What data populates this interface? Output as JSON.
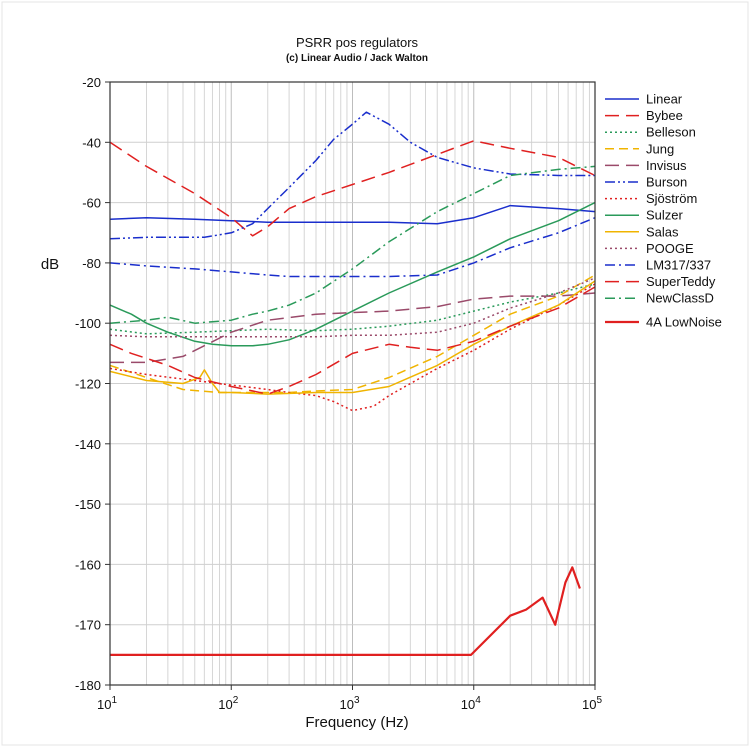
{
  "chart_data": {
    "type": "line",
    "title": "PSRR pos regulators",
    "subtitle": "(c) Linear Audio / Jack Walton",
    "xlabel": "Frequency (Hz)",
    "ylabel": "dB",
    "xscale": "log",
    "xlim": [
      10,
      100000
    ],
    "ylim": [
      -180,
      -20
    ],
    "grid": true,
    "legend_position": "right",
    "x_ticks": [
      {
        "value": 10,
        "base": "10",
        "exp": "1"
      },
      {
        "value": 100,
        "base": "10",
        "exp": "2"
      },
      {
        "value": 1000,
        "base": "10",
        "exp": "3"
      },
      {
        "value": 10000,
        "base": "10",
        "exp": "4"
      },
      {
        "value": 100000,
        "base": "10",
        "exp": "5"
      }
    ],
    "y_ticks": [
      {
        "value": -20,
        "label": "-20"
      },
      {
        "value": -40,
        "label": "-40"
      },
      {
        "value": -60,
        "label": "-60"
      },
      {
        "value": -80,
        "label": "-80"
      },
      {
        "value": -100,
        "label": "-100"
      },
      {
        "value": -120,
        "label": "-120"
      },
      {
        "value": -140,
        "label": "-140"
      },
      {
        "value": -150,
        "label": "-150"
      },
      {
        "value": -160,
        "label": "-160"
      },
      {
        "value": -170,
        "label": "-170"
      },
      {
        "value": -180,
        "label": "-180"
      }
    ],
    "series": [
      {
        "name": "Linear",
        "color": "#1a2ecc",
        "dash": "solid",
        "x": [
          10,
          20,
          50,
          100,
          200,
          500,
          1000,
          2000,
          5000,
          10000,
          20000,
          50000,
          100000
        ],
        "y": [
          -65.5,
          -65,
          -65.5,
          -66,
          -66.5,
          -66.5,
          -66.5,
          -66.5,
          -67,
          -65,
          -61,
          -62,
          -63
        ]
      },
      {
        "name": "Bybee",
        "color": "#e02020",
        "dash": "longdash",
        "x": [
          10,
          20,
          50,
          100,
          150,
          200,
          300,
          500,
          1000,
          2000,
          5000,
          10000,
          20000,
          50000,
          100000
        ],
        "y": [
          -40,
          -48,
          -57,
          -65,
          -71,
          -68,
          -62,
          -58,
          -54,
          -50,
          -44,
          -39.5,
          -42,
          -45,
          -51
        ]
      },
      {
        "name": "Belleson",
        "color": "#2a9a5a",
        "dash": "dot",
        "x": [
          10,
          20,
          50,
          100,
          200,
          500,
          1000,
          2000,
          5000,
          10000,
          20000,
          50000,
          100000
        ],
        "y": [
          -102,
          -103.5,
          -103,
          -102.5,
          -102,
          -102.5,
          -102,
          -101,
          -99,
          -96,
          -93,
          -90,
          -87
        ]
      },
      {
        "name": "Jung",
        "color": "#f0b400",
        "dash": "dash",
        "x": [
          10,
          20,
          40,
          80,
          150,
          300,
          500,
          1000,
          2000,
          5000,
          10000,
          20000,
          50000,
          100000
        ],
        "y": [
          -114,
          -118,
          -122,
          -123,
          -123,
          -123,
          -122.5,
          -122,
          -118,
          -111,
          -104,
          -97,
          -91,
          -84
        ]
      },
      {
        "name": "Invisus",
        "color": "#9a4a6a",
        "dash": "longdash",
        "x": [
          10,
          20,
          40,
          100,
          200,
          500,
          1000,
          2000,
          5000,
          10000,
          20000,
          50000,
          100000
        ],
        "y": [
          -113,
          -113,
          -111,
          -103,
          -99,
          -97,
          -96.5,
          -96,
          -94.5,
          -92,
          -91,
          -91,
          -90
        ]
      },
      {
        "name": "Burson",
        "color": "#1a2ecc",
        "dash": "dashdotdot",
        "x": [
          10,
          20,
          60,
          100,
          150,
          200,
          300,
          500,
          700,
          1000,
          1300,
          2000,
          3000,
          5000,
          10000,
          20000,
          50000,
          100000
        ],
        "y": [
          -72,
          -71.5,
          -71.5,
          -70,
          -67,
          -62,
          -55,
          -46,
          -39,
          -34,
          -30,
          -34,
          -40,
          -45,
          -48.5,
          -50.5,
          -51,
          -51
        ]
      },
      {
        "name": "Sjöström",
        "color": "#e02020",
        "dash": "dot",
        "x": [
          10,
          20,
          50,
          100,
          200,
          300,
          500,
          700,
          1000,
          1500,
          2000,
          5000,
          10000,
          20000,
          50000,
          100000
        ],
        "y": [
          -115,
          -117,
          -119,
          -120.5,
          -122,
          -123,
          -124,
          -126,
          -129,
          -127.5,
          -124,
          -115,
          -109,
          -102,
          -94,
          -87
        ]
      },
      {
        "name": "Sulzer",
        "color": "#2a9a5a",
        "dash": "solid",
        "x": [
          10,
          15,
          20,
          30,
          50,
          70,
          100,
          150,
          200,
          300,
          500,
          1000,
          2000,
          5000,
          10000,
          20000,
          50000,
          100000
        ],
        "y": [
          -94,
          -97,
          -100,
          -103,
          -106,
          -107,
          -107.5,
          -107.5,
          -107,
          -105.5,
          -102,
          -96,
          -90,
          -83,
          -78,
          -72,
          -66,
          -60
        ]
      },
      {
        "name": "Salas",
        "color": "#f0b400",
        "dash": "solid",
        "x": [
          10,
          20,
          40,
          55,
          60,
          70,
          80,
          100,
          200,
          500,
          1000,
          2000,
          5000,
          10000,
          20000,
          50000,
          100000
        ],
        "y": [
          -116,
          -119,
          -120,
          -118,
          -115.5,
          -120,
          -123,
          -123,
          -123.5,
          -123,
          -123,
          -121,
          -114,
          -107,
          -101,
          -94,
          -86
        ]
      },
      {
        "name": "POOGE",
        "color": "#9a4a6a",
        "dash": "dot",
        "x": [
          10,
          20,
          50,
          100,
          200,
          500,
          1000,
          2000,
          5000,
          10000,
          20000,
          50000,
          100000
        ],
        "y": [
          -104,
          -104.5,
          -104.5,
          -104.5,
          -104.5,
          -104.5,
          -104,
          -104,
          -103,
          -100,
          -95,
          -90,
          -85
        ]
      },
      {
        "name": "LM317/337",
        "color": "#1a2ecc",
        "dash": "dashdot",
        "x": [
          10,
          20,
          50,
          100,
          200,
          300,
          500,
          1000,
          2000,
          5000,
          10000,
          20000,
          50000,
          100000
        ],
        "y": [
          -80,
          -81,
          -82,
          -83,
          -84,
          -84.5,
          -84.5,
          -84.5,
          -84.5,
          -84,
          -80,
          -75,
          -70,
          -65
        ]
      },
      {
        "name": "SuperTeddy",
        "color": "#e02020",
        "dash": "longdash",
        "x": [
          10,
          15,
          30,
          50,
          100,
          200,
          300,
          500,
          1000,
          2000,
          3000,
          5000,
          10000,
          20000,
          50000,
          100000
        ],
        "y": [
          -107,
          -110,
          -114,
          -118,
          -121,
          -123.5,
          -121,
          -117,
          -110,
          -107,
          -108,
          -109,
          -106,
          -101,
          -95,
          -88
        ]
      },
      {
        "name": "NewClassD",
        "color": "#2a9a5a",
        "dash": "dashdot",
        "x": [
          10,
          20,
          30,
          50,
          100,
          150,
          200,
          300,
          500,
          1000,
          2000,
          5000,
          10000,
          20000,
          50000,
          100000
        ],
        "y": [
          -100,
          -99,
          -98,
          -100,
          -99,
          -97,
          -96,
          -94,
          -90,
          -82,
          -73,
          -63,
          -57,
          -51,
          -49,
          -48
        ]
      },
      {
        "name": "4A LowNoise",
        "color": "#e02020",
        "dash": "solid",
        "emphasis": true,
        "x": [
          10,
          100,
          1000,
          9500,
          20000,
          27000,
          37000,
          47000,
          57000,
          65000,
          75000
        ],
        "y": [
          -175,
          -175,
          -175,
          -175,
          -168.5,
          -167.5,
          -165.5,
          -170,
          -163,
          -160.5,
          -164
        ]
      }
    ]
  }
}
